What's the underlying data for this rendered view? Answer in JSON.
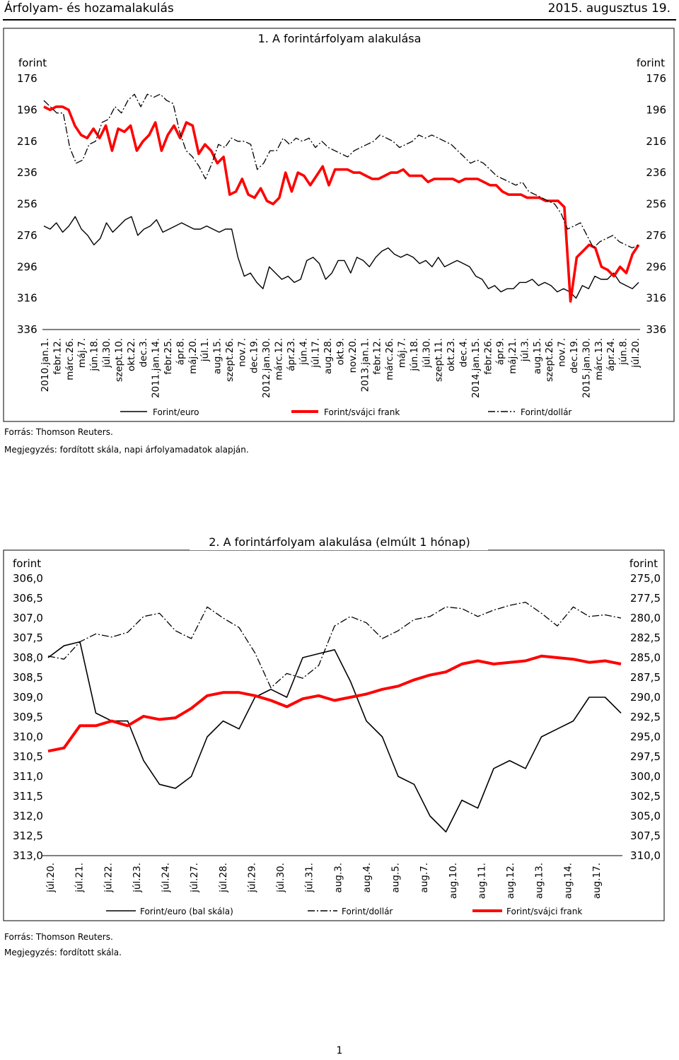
{
  "header": {
    "title": "Árfolyam- és hozamalakulás",
    "date": "2015. augusztus 19."
  },
  "page_number": "1",
  "notes": {
    "chart1_source": "Forrás: Thomson Reuters.",
    "chart1_note": "Megjegyzés: fordított skála, napi árfolyamadatok alapján.",
    "chart2_source": "Forrás: Thomson Reuters.",
    "chart2_note": "Megjegyzés: fordított skála."
  },
  "colors": {
    "euro": "#000000",
    "chf": "#ff0000",
    "usd": "#000000"
  },
  "chart_data": [
    {
      "type": "line",
      "title": "1. A forintárfolyam alakulása",
      "y_unit_left": "forint",
      "y_unit_right": "forint",
      "y_ticks": [
        "176",
        "196",
        "216",
        "236",
        "256",
        "276",
        "296",
        "316",
        "336"
      ],
      "ylim": [
        176,
        336
      ],
      "inverted": true,
      "x_labels": [
        "2010.jan.1.",
        "febr.12.",
        "márc.26.",
        "máj.7.",
        "jún.18.",
        "júl.30.",
        "szept.10.",
        "okt.22.",
        "dec.3.",
        "2011.jan.14.",
        "febr.25.",
        "ápr.8.",
        "máj.20.",
        "júl.1.",
        "aug.15.",
        "szept.26.",
        "nov.7.",
        "dec.19.",
        "2012.jan.30.",
        "márc.12.",
        "ápr.23.",
        "jún.4.",
        "júl.17.",
        "aug.28.",
        "okt.9.",
        "nov.20.",
        "2013.jan.1.",
        "febr.12.",
        "márc.26.",
        "máj.7.",
        "jún.18.",
        "júl.30.",
        "szept.11.",
        "okt.23.",
        "dec.4.",
        "2014.jan.15.",
        "febr.26.",
        "ápr.9.",
        "máj.21.",
        "júl.3.",
        "aug.15.",
        "szept.26.",
        "nov.7.",
        "dec.19.",
        "2015.jan.30.",
        "márc.13.",
        "ápr.24.",
        "jún.8.",
        "júl.20."
      ],
      "legend": [
        "Forint/euro",
        "Forint/svájci frank",
        "Forint/dollár"
      ],
      "series": [
        {
          "name": "Forint/euro",
          "style": "solid",
          "values": [
            270,
            272,
            268,
            274,
            270,
            264,
            272,
            276,
            282,
            278,
            268,
            274,
            270,
            266,
            264,
            276,
            272,
            270,
            266,
            274,
            272,
            270,
            268,
            270,
            272,
            272,
            270,
            272,
            274,
            272,
            272,
            290,
            302,
            300,
            306,
            310,
            296,
            300,
            304,
            302,
            306,
            304,
            292,
            290,
            294,
            304,
            300,
            292,
            292,
            300,
            290,
            292,
            296,
            290,
            286,
            284,
            288,
            290,
            288,
            290,
            294,
            292,
            296,
            290,
            296,
            294,
            292,
            294,
            296,
            302,
            304,
            310,
            308,
            312,
            310,
            310,
            306,
            306,
            304,
            308,
            306,
            308,
            312,
            310,
            312,
            316,
            308,
            310,
            302,
            304,
            304,
            300,
            306,
            308,
            310,
            306
          ]
        },
        {
          "name": "Forint/svájci frank",
          "style": "solid",
          "values": [
            194,
            196,
            194,
            194,
            196,
            206,
            212,
            214,
            208,
            214,
            206,
            222,
            208,
            210,
            206,
            222,
            216,
            212,
            204,
            222,
            212,
            206,
            214,
            204,
            206,
            224,
            218,
            222,
            230,
            226,
            250,
            248,
            240,
            250,
            252,
            246,
            254,
            256,
            252,
            236,
            248,
            236,
            238,
            244,
            238,
            232,
            244,
            234,
            234,
            234,
            236,
            236,
            238,
            240,
            240,
            238,
            236,
            236,
            234,
            238,
            238,
            238,
            242,
            240,
            240,
            240,
            240,
            242,
            240,
            240,
            240,
            242,
            244,
            244,
            248,
            250,
            250,
            250,
            252,
            252,
            252,
            254,
            254,
            254,
            258,
            318,
            290,
            286,
            282,
            284,
            296,
            298,
            302,
            296,
            300,
            288,
            282
          ]
        },
        {
          "name": "Forint/dollár",
          "style": "dashdot",
          "values": [
            190,
            194,
            198,
            198,
            220,
            230,
            228,
            218,
            216,
            204,
            202,
            194,
            198,
            190,
            186,
            194,
            186,
            188,
            186,
            190,
            192,
            210,
            222,
            226,
            232,
            240,
            230,
            218,
            220,
            214,
            216,
            216,
            218,
            234,
            230,
            222,
            222,
            214,
            218,
            214,
            216,
            214,
            220,
            216,
            220,
            222,
            224,
            226,
            222,
            220,
            218,
            216,
            212,
            214,
            216,
            220,
            218,
            216,
            212,
            214,
            212,
            214,
            216,
            218,
            222,
            226,
            230,
            228,
            230,
            234,
            238,
            240,
            242,
            244,
            242,
            248,
            250,
            252,
            254,
            256,
            262,
            272,
            270,
            268,
            276,
            284,
            280,
            278,
            276,
            280,
            282,
            284,
            282
          ]
        }
      ]
    },
    {
      "type": "line",
      "title": "2. A forintárfolyam alakulása (elmúlt 1 hónap)",
      "y_unit_left": "forint",
      "y_unit_right": "forint",
      "y_left_ticks": [
        "306,0",
        "306,5",
        "307,0",
        "307,5",
        "308,0",
        "308,5",
        "309,0",
        "309,5",
        "310,0",
        "310,5",
        "311,0",
        "311,5",
        "312,0",
        "312,5",
        "313,0"
      ],
      "y_right_ticks": [
        "275,0",
        "277,5",
        "280,0",
        "282,5",
        "285,0",
        "287,5",
        "290,0",
        "292,5",
        "295,0",
        "297,5",
        "300,0",
        "302,5",
        "305,0",
        "307,5",
        "310,0"
      ],
      "ylim_left": [
        306,
        313
      ],
      "ylim_right": [
        275,
        310
      ],
      "inverted": true,
      "x_labels": [
        "júl.20.",
        "júl.21.",
        "júl.22.",
        "júl.23.",
        "júl.24.",
        "júl.27.",
        "júl.28.",
        "júl.29.",
        "júl.30.",
        "júl.31.",
        "aug.3.",
        "aug.4.",
        "aug.5.",
        "aug.7.",
        "aug.10.",
        "aug.11.",
        "aug.12.",
        "aug.13.",
        "aug.14.",
        "aug.17."
      ],
      "legend": [
        "Forint/euro (bal skála)",
        "Forint/dollár",
        "Forint/svájci frank"
      ],
      "series": [
        {
          "name": "Forint/euro (bal skála)",
          "axis": "left",
          "style": "solid",
          "values": [
            308.0,
            307.7,
            307.6,
            309.4,
            309.6,
            309.6,
            310.6,
            311.2,
            311.3,
            311.0,
            310.0,
            309.6,
            309.8,
            309.0,
            308.8,
            309.0,
            308.0,
            307.9,
            307.8,
            308.6,
            309.6,
            310.0,
            311.0,
            311.2,
            312.0,
            312.4,
            311.6,
            311.8,
            310.8,
            310.6,
            310.8,
            310.0,
            309.8,
            309.6,
            309.0,
            309.0,
            309.4
          ]
        },
        {
          "name": "Forint/dollár",
          "axis": "right",
          "style": "dashdot",
          "values": [
            284.8,
            285.2,
            283.0,
            282.0,
            282.4,
            281.8,
            279.8,
            279.4,
            281.6,
            282.6,
            278.6,
            280.0,
            281.2,
            284.4,
            288.8,
            287.0,
            287.6,
            286.0,
            281.0,
            279.8,
            280.6,
            282.6,
            281.6,
            280.2,
            279.8,
            278.6,
            278.8,
            279.8,
            279.0,
            278.4,
            278.0,
            279.4,
            281.0,
            278.6,
            279.8,
            279.6,
            280.0
          ]
        },
        {
          "name": "Forint/svájci frank",
          "axis": "right",
          "style": "solid",
          "values": [
            296.8,
            296.4,
            293.6,
            293.6,
            293.0,
            293.6,
            292.4,
            292.8,
            292.6,
            291.4,
            289.8,
            289.4,
            289.4,
            289.8,
            290.4,
            291.2,
            290.2,
            289.8,
            290.4,
            290.0,
            289.6,
            289.0,
            288.6,
            287.8,
            287.2,
            286.8,
            285.8,
            285.4,
            285.8,
            285.6,
            285.4,
            284.8,
            285.0,
            285.2,
            285.6,
            285.4,
            285.8
          ]
        }
      ]
    }
  ]
}
